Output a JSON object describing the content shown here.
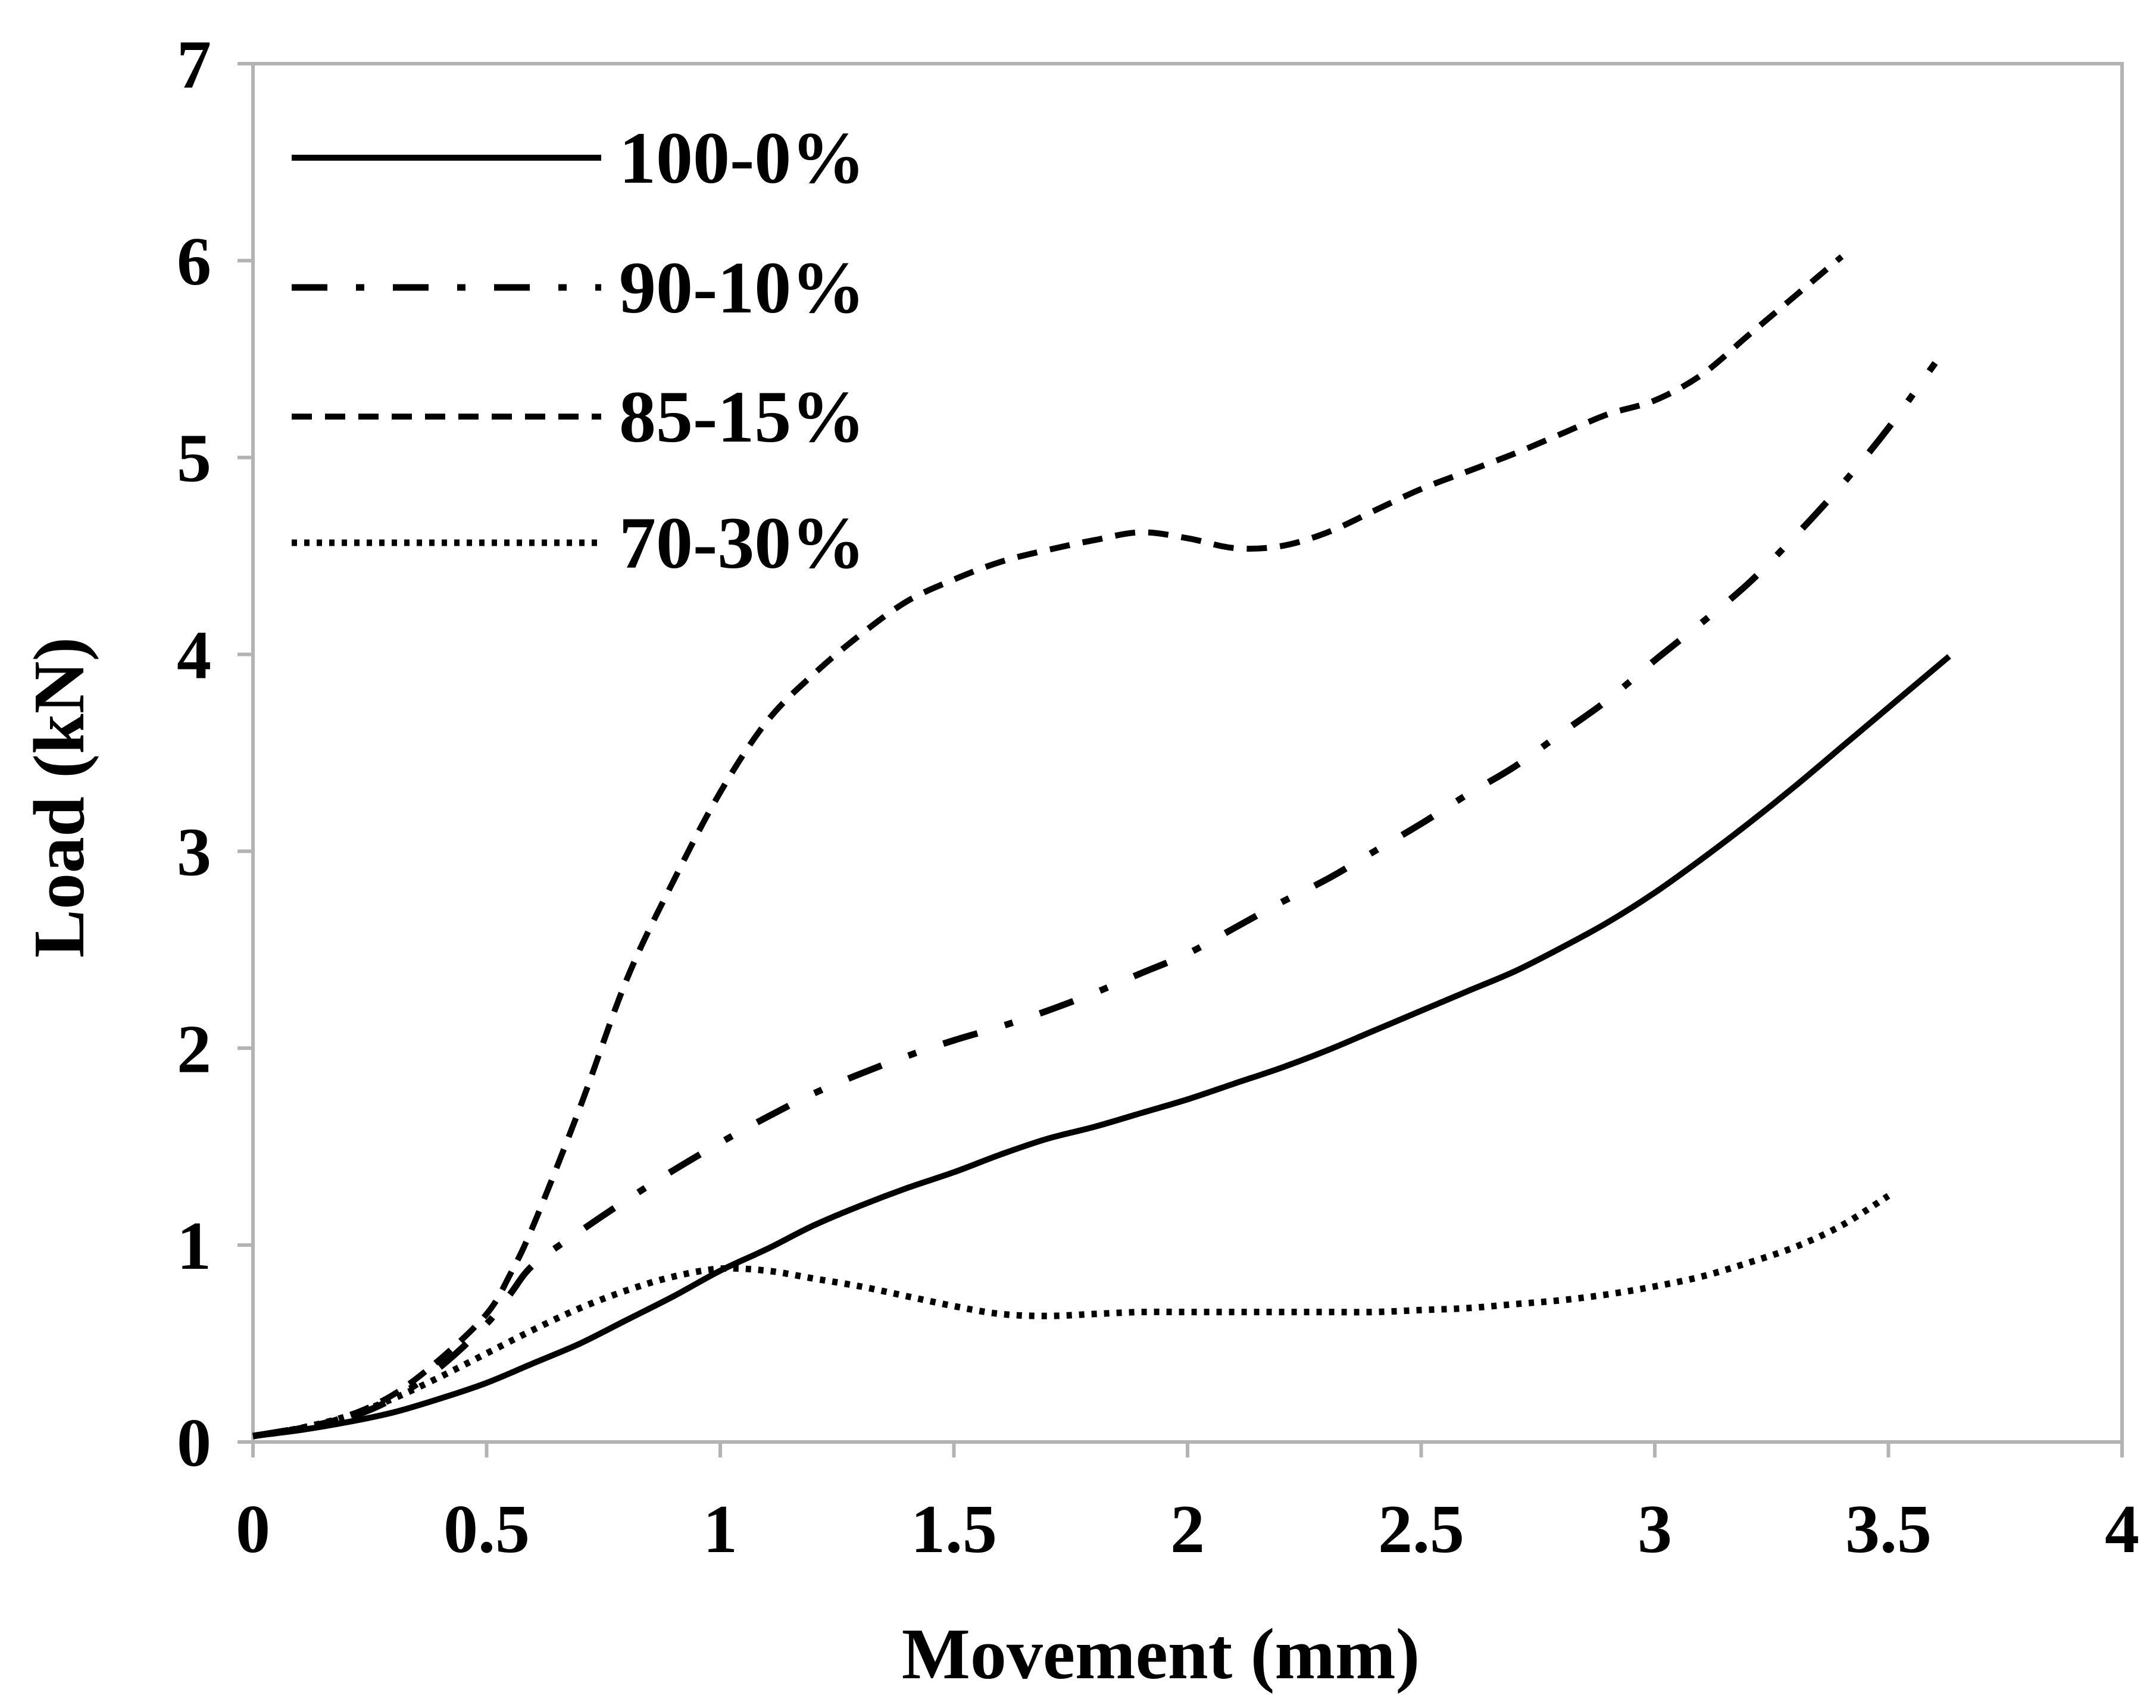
{
  "chart_data": {
    "type": "line",
    "title": "",
    "xlabel": "Movement (mm)",
    "ylabel": "Load (kN)",
    "xlim": [
      0,
      4
    ],
    "ylim": [
      0,
      7
    ],
    "xticks": [
      "0",
      "0.5",
      "1",
      "1.5",
      "2",
      "2.5",
      "3",
      "3.5",
      "4"
    ],
    "yticks": [
      "0",
      "1",
      "2",
      "3",
      "4",
      "5",
      "6",
      "7"
    ],
    "grid": false,
    "legend": "top-left",
    "series": [
      {
        "name": "100-0%",
        "style": "solid",
        "x": [
          0,
          0.1,
          0.2,
          0.3,
          0.4,
          0.5,
          0.6,
          0.7,
          0.8,
          0.9,
          1.0,
          1.1,
          1.2,
          1.3,
          1.4,
          1.5,
          1.6,
          1.7,
          1.8,
          1.9,
          2.0,
          2.1,
          2.2,
          2.3,
          2.4,
          2.5,
          2.6,
          2.7,
          2.8,
          2.9,
          3.0,
          3.1,
          3.2,
          3.3,
          3.4,
          3.5,
          3.63
        ],
        "y": [
          0.03,
          0.06,
          0.1,
          0.15,
          0.22,
          0.3,
          0.4,
          0.5,
          0.62,
          0.74,
          0.87,
          0.98,
          1.1,
          1.2,
          1.29,
          1.37,
          1.46,
          1.54,
          1.6,
          1.67,
          1.74,
          1.82,
          1.9,
          1.99,
          2.09,
          2.19,
          2.29,
          2.39,
          2.51,
          2.64,
          2.79,
          2.96,
          3.14,
          3.33,
          3.53,
          3.73,
          3.99
        ]
      },
      {
        "name": "90-10%",
        "style": "dash-dot",
        "x": [
          0,
          0.1,
          0.2,
          0.3,
          0.4,
          0.5,
          0.55,
          0.6,
          0.7,
          0.8,
          0.9,
          1.0,
          1.1,
          1.2,
          1.3,
          1.4,
          1.5,
          1.6,
          1.7,
          1.8,
          1.9,
          2.0,
          2.1,
          2.2,
          2.3,
          2.4,
          2.5,
          2.6,
          2.7,
          2.8,
          2.9,
          3.0,
          3.1,
          3.2,
          3.3,
          3.4,
          3.5,
          3.6
        ],
        "y": [
          0.03,
          0.07,
          0.12,
          0.22,
          0.38,
          0.6,
          0.75,
          0.9,
          1.07,
          1.23,
          1.38,
          1.52,
          1.65,
          1.77,
          1.87,
          1.96,
          2.04,
          2.11,
          2.19,
          2.28,
          2.38,
          2.48,
          2.61,
          2.74,
          2.86,
          3.0,
          3.14,
          3.29,
          3.43,
          3.6,
          3.77,
          3.97,
          4.16,
          4.36,
          4.6,
          4.86,
          5.15,
          5.48
        ]
      },
      {
        "name": "85-15%",
        "style": "dashed",
        "x": [
          0,
          0.1,
          0.2,
          0.3,
          0.4,
          0.5,
          0.55,
          0.6,
          0.7,
          0.8,
          0.9,
          1.0,
          1.1,
          1.2,
          1.3,
          1.4,
          1.5,
          1.6,
          1.7,
          1.8,
          1.9,
          2.0,
          2.1,
          2.2,
          2.3,
          2.4,
          2.5,
          2.6,
          2.7,
          2.8,
          2.9,
          3.0,
          3.1,
          3.2,
          3.3,
          3.4
        ],
        "y": [
          0.03,
          0.07,
          0.13,
          0.24,
          0.42,
          0.65,
          0.85,
          1.1,
          1.7,
          2.35,
          2.85,
          3.3,
          3.66,
          3.9,
          4.1,
          4.27,
          4.38,
          4.47,
          4.53,
          4.58,
          4.62,
          4.59,
          4.54,
          4.55,
          4.62,
          4.73,
          4.84,
          4.93,
          5.02,
          5.12,
          5.22,
          5.29,
          5.42,
          5.62,
          5.82,
          6.02
        ]
      },
      {
        "name": "70-30%",
        "style": "dotted",
        "x": [
          0,
          0.1,
          0.2,
          0.3,
          0.4,
          0.5,
          0.6,
          0.7,
          0.8,
          0.9,
          1.0,
          1.1,
          1.2,
          1.3,
          1.4,
          1.5,
          1.6,
          1.7,
          1.8,
          1.9,
          2.0,
          2.1,
          2.2,
          2.3,
          2.4,
          2.5,
          2.6,
          2.7,
          2.8,
          2.9,
          3.0,
          3.1,
          3.2,
          3.3,
          3.4,
          3.5
        ],
        "y": [
          0.03,
          0.07,
          0.13,
          0.22,
          0.33,
          0.45,
          0.57,
          0.68,
          0.77,
          0.84,
          0.88,
          0.87,
          0.83,
          0.79,
          0.74,
          0.69,
          0.65,
          0.64,
          0.65,
          0.66,
          0.66,
          0.66,
          0.66,
          0.66,
          0.66,
          0.67,
          0.68,
          0.7,
          0.72,
          0.75,
          0.79,
          0.84,
          0.91,
          0.99,
          1.1,
          1.25
        ]
      }
    ]
  },
  "colors": {
    "line": "#000000",
    "frame": "#b3b3b3",
    "background": "#ffffff"
  }
}
